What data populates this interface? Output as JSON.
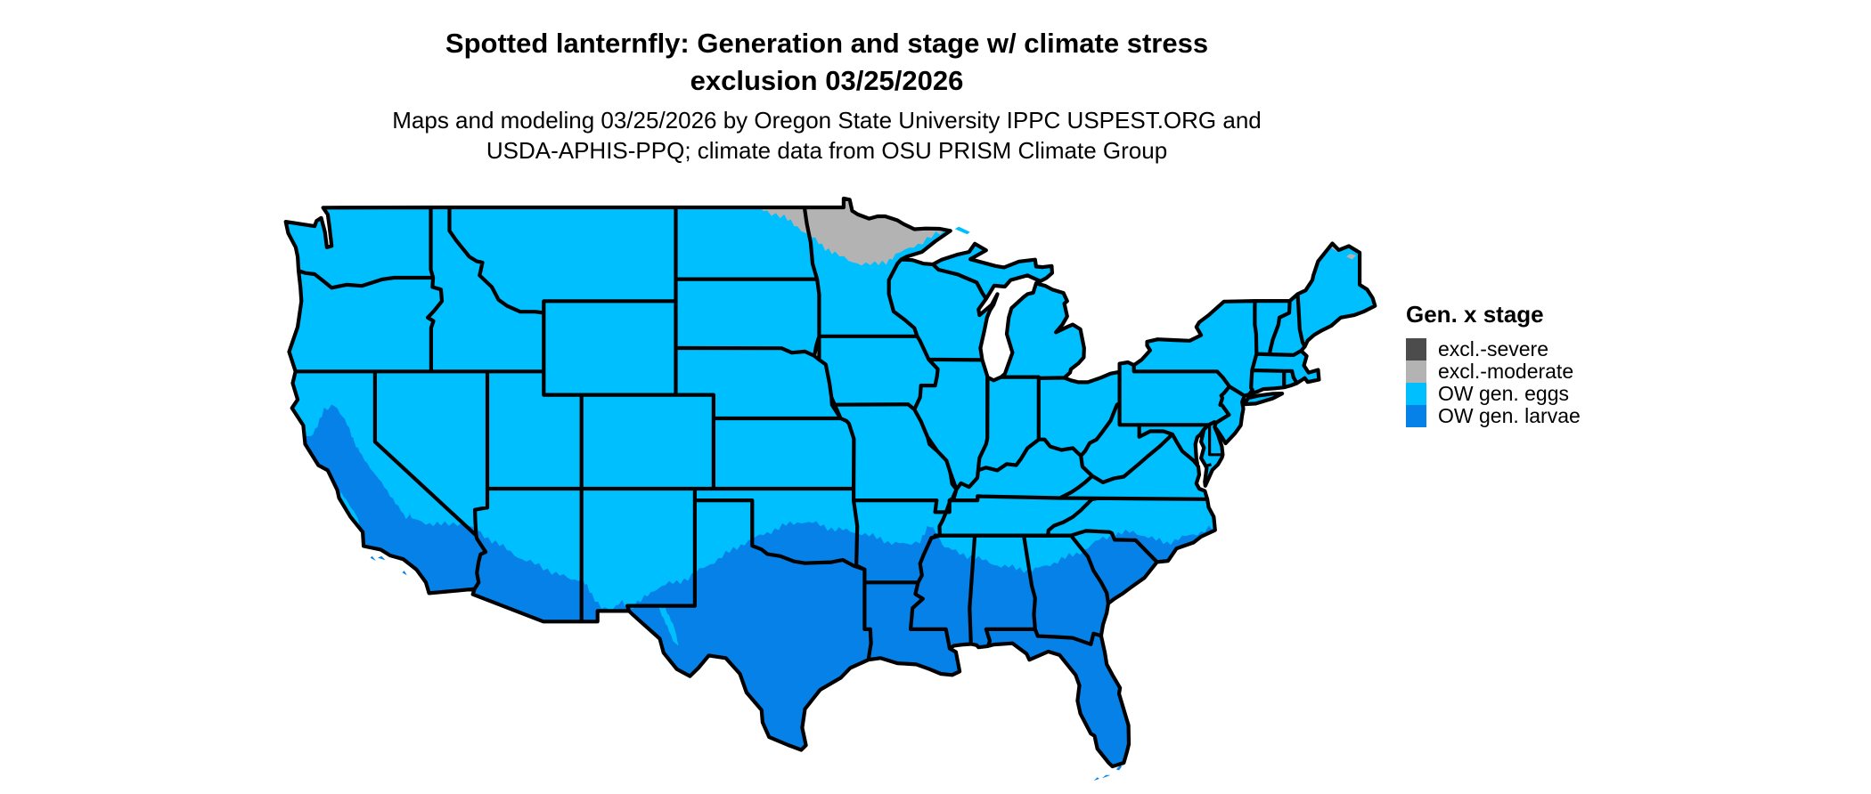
{
  "header": {
    "title_line1": "Spotted lanternfly: Generation and stage w/ climate stress",
    "title_line2": "exclusion 03/25/2026",
    "subtitle_line1": "Maps and modeling 03/25/2026 by Oregon State University IPPC USPEST.ORG and",
    "subtitle_line2": "USDA-APHIS-PPQ; climate data from OSU PRISM Climate Group"
  },
  "legend": {
    "title": "Gen. x stage",
    "items": [
      {
        "label": "excl.-severe",
        "color": "#4C4C4C"
      },
      {
        "label": "excl.-moderate",
        "color": "#B3B3B3"
      },
      {
        "label": "OW gen. eggs",
        "color": "#00BFFF"
      },
      {
        "label": "OW gen. larvae",
        "color": "#0681E8"
      }
    ]
  },
  "map": {
    "region": "Contiguous United States",
    "background_color": "#FFFFFF",
    "border_color": "#000000",
    "base_category": "OW gen. eggs",
    "southern_band_category": "OW gen. larvae",
    "northern_exclusion_category": "excl.-moderate"
  }
}
